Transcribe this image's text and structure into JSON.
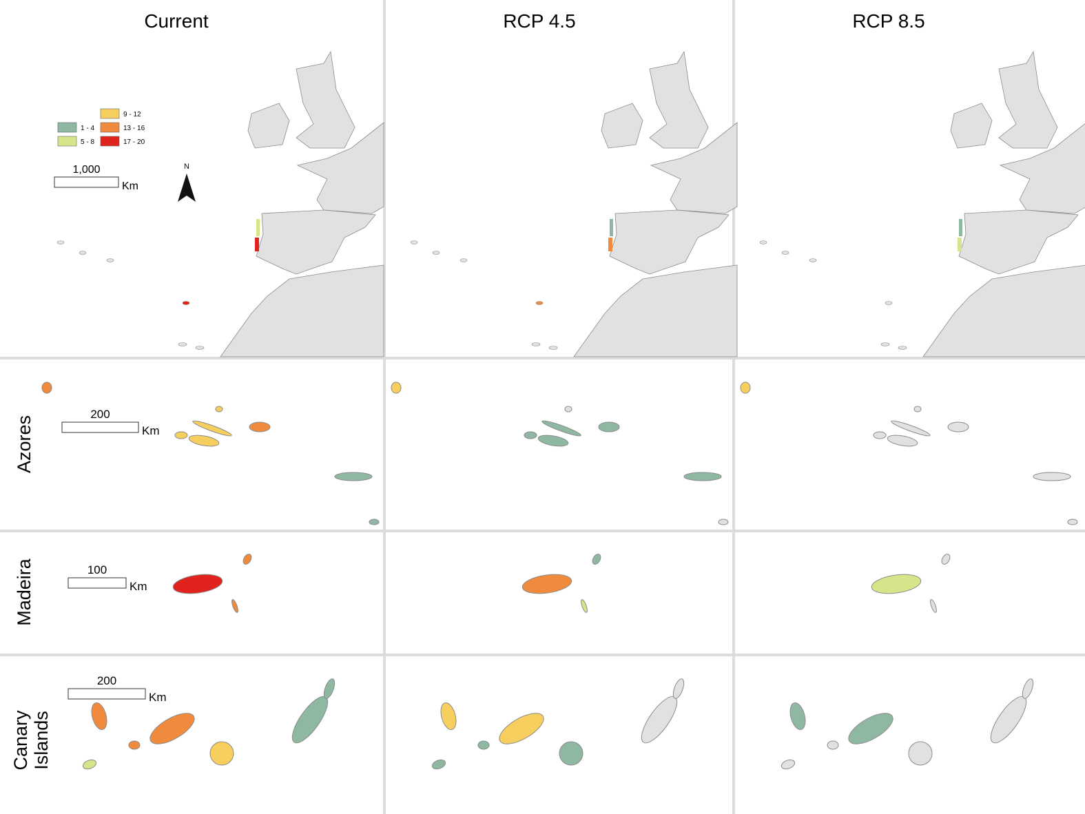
{
  "columns": [
    "Current",
    "RCP 4.5",
    "RCP 8.5"
  ],
  "rows": [
    "Azores",
    "Madeira",
    "Canary Islands"
  ],
  "legend": [
    {
      "label": "1 - 4",
      "color": "#8fb8a2"
    },
    {
      "label": "5 - 8",
      "color": "#d8e48a"
    },
    {
      "label": "9 - 12",
      "color": "#f6cf5e"
    },
    {
      "label": "13 - 16",
      "color": "#f08a3c"
    },
    {
      "label": "17 - 20",
      "color": "#e0231c"
    }
  ],
  "north": "N",
  "scale_unit": "Km",
  "scale_bars": {
    "overview": "1,000",
    "azores": "200",
    "madeira": "100",
    "canary": "200"
  }
}
